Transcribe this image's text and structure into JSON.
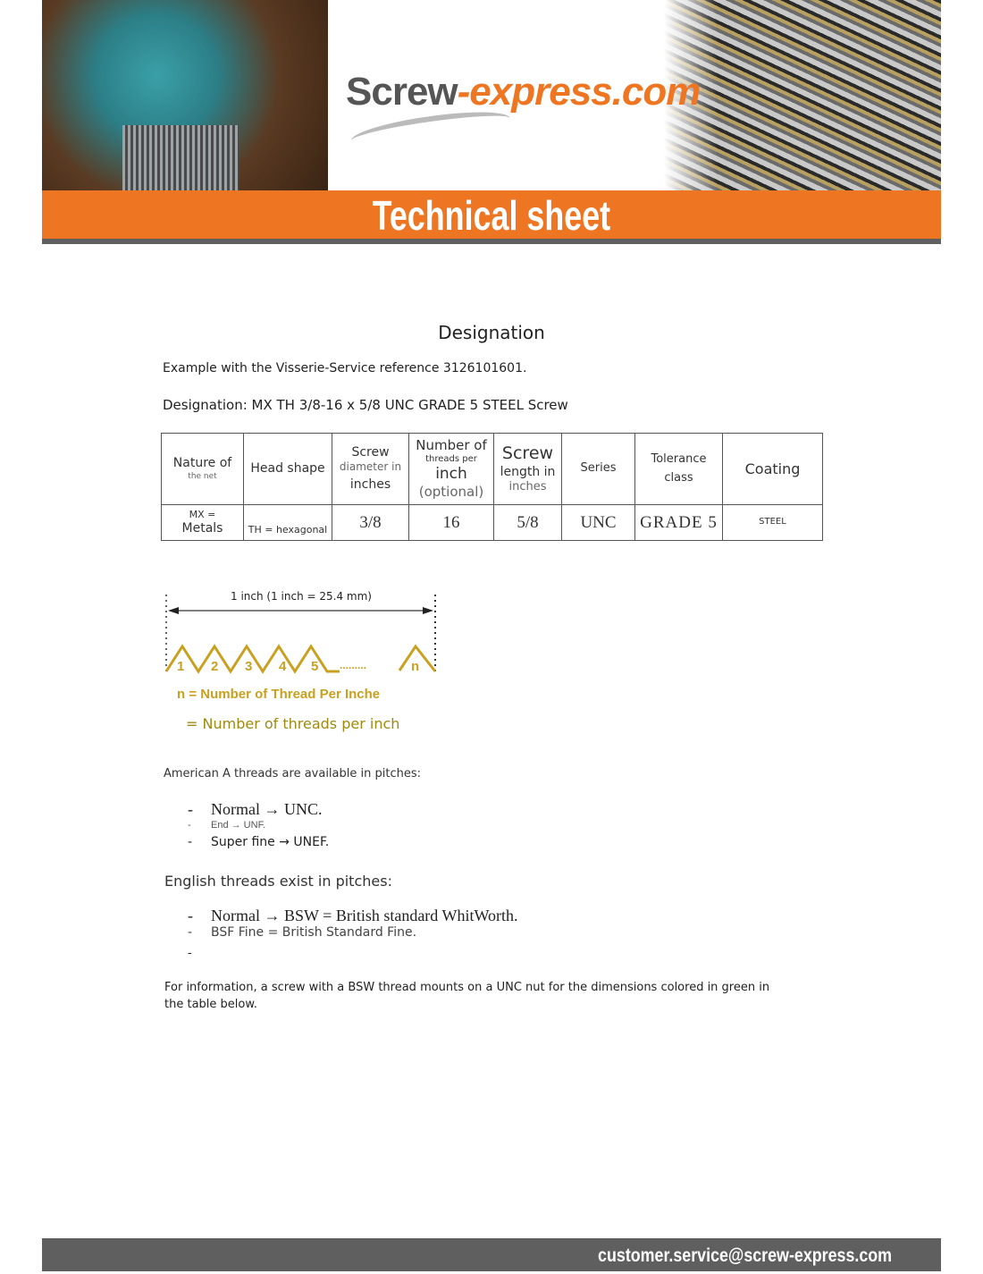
{
  "header": {
    "logo_main": "Screw",
    "logo_accent": "-express.com",
    "banner_title": "Technical sheet"
  },
  "colors": {
    "brand_orange": "#ee7623",
    "footer_gray": "#5f5f5f",
    "thread_gold": "#c9a020"
  },
  "section_title": "Designation",
  "intro": "Example with the Visserie-Service reference 3126101601.",
  "designation": "Designation: MX TH 3/8-16 x 5/8 UNC GRADE 5 STEEL Screw",
  "table": {
    "headers": [
      {
        "main": "Nature of",
        "sub": "the net"
      },
      {
        "main": "Head shape"
      },
      {
        "main": "Screw",
        "sub": "diameter in",
        "tail": "inches"
      },
      {
        "main": "Number of",
        "sub": "threads per",
        "tail": "inch",
        "extra": "(optional)"
      },
      {
        "main": "Screw",
        "sub": "length in",
        "tail": "inches"
      },
      {
        "main": "Series"
      },
      {
        "main": "Tolerance",
        "sub": "class"
      },
      {
        "main": "Coating"
      }
    ],
    "row": [
      {
        "top": "MX =",
        "bottom": "Metals"
      },
      "TH = hexagonal",
      "3/8",
      "16",
      "5/8",
      "UNC",
      "GRADE 5",
      "STEEL"
    ]
  },
  "diagram": {
    "measure_label": "1 inch (1 inch = 25.4 mm)",
    "thread_labels": [
      "1",
      "2",
      "3",
      "4",
      "5"
    ],
    "ellipsis": ".........",
    "last_label": "n",
    "caption1": "n = Number of Thread Per Inche",
    "caption2": "= Number of threads per inch"
  },
  "american": {
    "intro": "American A threads are available in pitches:",
    "items": [
      "Normal → UNC.",
      "End → UNF.",
      "Super fine → UNEF."
    ]
  },
  "english": {
    "intro": "English threads exist in pitches:",
    "items": [
      "Normal → BSW = British standard WhitWorth.",
      "BSF Fine = British Standard Fine.",
      ""
    ]
  },
  "info": "For information, a screw with a BSW thread mounts on a UNC nut for the dimensions colored in green in the table below.",
  "footer": {
    "email": "customer.service@screw-express.com"
  }
}
